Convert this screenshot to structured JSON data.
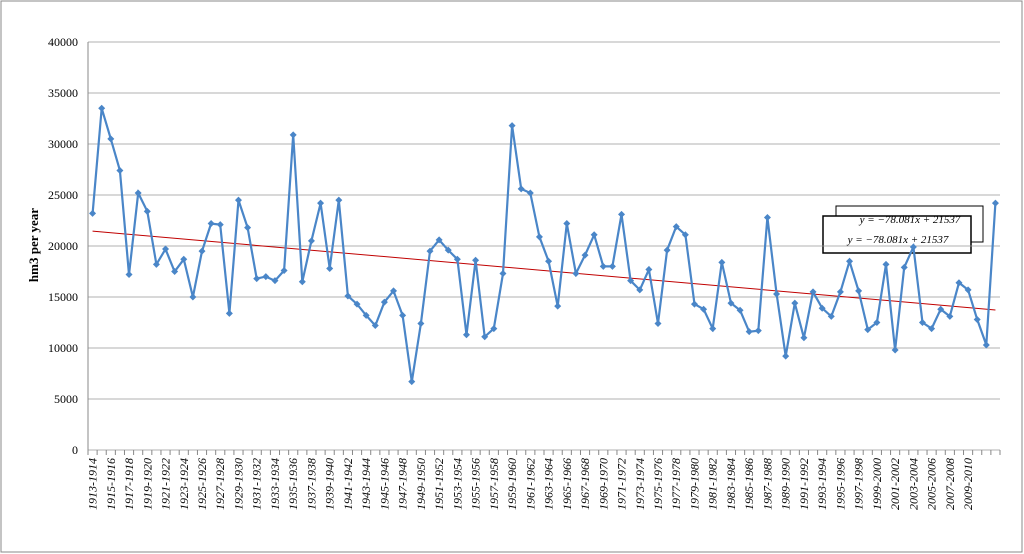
{
  "chart_data": {
    "type": "line",
    "y_label": "hm3 per year",
    "categories": [
      "1913-1914",
      null,
      "1915-1916",
      null,
      "1917-1918",
      null,
      "1919-1920",
      null,
      "1921-1922",
      null,
      "1923-1924",
      null,
      "1925-1926",
      null,
      "1927-1928",
      null,
      "1929-1930",
      null,
      "1931-1932",
      null,
      "1933-1934",
      null,
      "1935-1936",
      null,
      "1937-1938",
      null,
      "1939-1940",
      null,
      "1941-1942",
      null,
      "1943-1944",
      null,
      "1945-1946",
      null,
      "1947-1948",
      null,
      "1949-1950",
      null,
      "1951-1952",
      null,
      "1953-1954",
      null,
      "1955-1956",
      null,
      "1957-1958",
      null,
      "1959-1960",
      null,
      "1961-1962",
      null,
      "1963-1964",
      null,
      "1965-1966",
      null,
      "1967-1968",
      null,
      "1969-1970",
      null,
      "1971-1972",
      null,
      "1973-1974",
      null,
      "1975-1976",
      null,
      "1977-1978",
      null,
      "1979-1980",
      null,
      "1981-1982",
      null,
      "1983-1984",
      null,
      "1985-1986",
      null,
      "1987-1988",
      null,
      "1989-1990",
      null,
      "1991-1992",
      null,
      "1993-1994",
      null,
      "1995-1996",
      null,
      "1997-1998",
      null,
      "1999-2000",
      null,
      "2001-2002",
      null,
      "2003-2004",
      null,
      "2005-2006",
      null,
      "2007-2008",
      null,
      "2009-2010",
      null,
      null,
      null
    ],
    "series": [
      {
        "color": "#4a86c8",
        "values": [
          23200,
          33500,
          30500,
          27400,
          17200,
          25200,
          23400,
          18200,
          19700,
          17500,
          18700,
          15000,
          19500,
          22200,
          22100,
          13400,
          24500,
          21800,
          16800,
          17000,
          16600,
          17600,
          30900,
          16500,
          20500,
          24200,
          17800,
          24500,
          15100,
          14300,
          13200,
          12200,
          14500,
          15600,
          13200,
          6700,
          12400,
          19500,
          20600,
          19600,
          18700,
          11300,
          18600,
          11100,
          11900,
          17300,
          31800,
          25600,
          25200,
          20900,
          18500,
          14100,
          22200,
          17300,
          19100,
          21100,
          18000,
          18000,
          23100,
          16600,
          15700,
          17700,
          12400,
          19600,
          21900,
          21100,
          14300,
          13800,
          11900,
          18400,
          14400,
          13700,
          11600,
          11700,
          22800,
          15300,
          9200,
          14400,
          11000,
          15500,
          13900,
          13100,
          15500,
          18500,
          15600,
          11800,
          12500,
          18200,
          9800,
          17900,
          19900,
          12500,
          11900,
          13800,
          13100,
          16400,
          15700,
          12800,
          10300,
          24200
        ]
      }
    ],
    "trend": {
      "slope": -78.081,
      "intercept": 21537,
      "color": "#c00000"
    },
    "annotations": [
      "y = −78.081x + 21537",
      "y = −78.081x + 21537"
    ],
    "ylim": [
      0,
      40000
    ],
    "yticks": [
      0,
      5000,
      10000,
      15000,
      20000,
      25000,
      30000,
      35000,
      40000
    ],
    "grid": true
  }
}
